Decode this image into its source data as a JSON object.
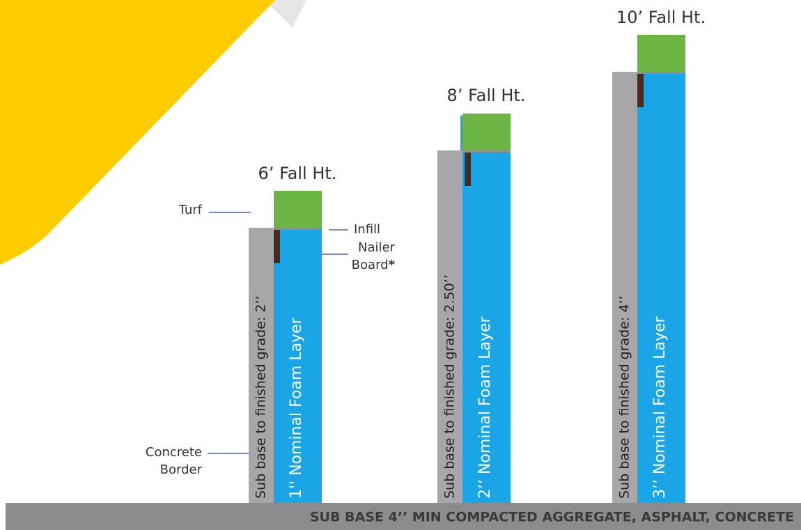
{
  "columns": [
    {
      "title": "6’ Fall Ht.",
      "border_label": "Sub base to finished grade: 2’’",
      "foam_label": "1'' Nominal Foam Layer"
    },
    {
      "title": "8’ Fall Ht.",
      "border_label": "Sub base to finished grade: 2.50’’",
      "foam_label": "2’’ Nominal Foam Layer"
    },
    {
      "title": "10’ Fall Ht.",
      "border_label": "Sub base to finished grade: 4’’",
      "foam_label": "3’’ Nominal Foam Layer"
    }
  ],
  "callouts": {
    "turf": "Turf",
    "infill": "Infill",
    "nailer": [
      "Nailer",
      "Board"
    ],
    "nailer_mark": "*",
    "concrete": [
      "Concrete",
      "Border"
    ]
  },
  "base_label": "SUB BASE 4’’ MIN COMPACTED AGGREGATE, ASPHALT, CONCRETE"
}
